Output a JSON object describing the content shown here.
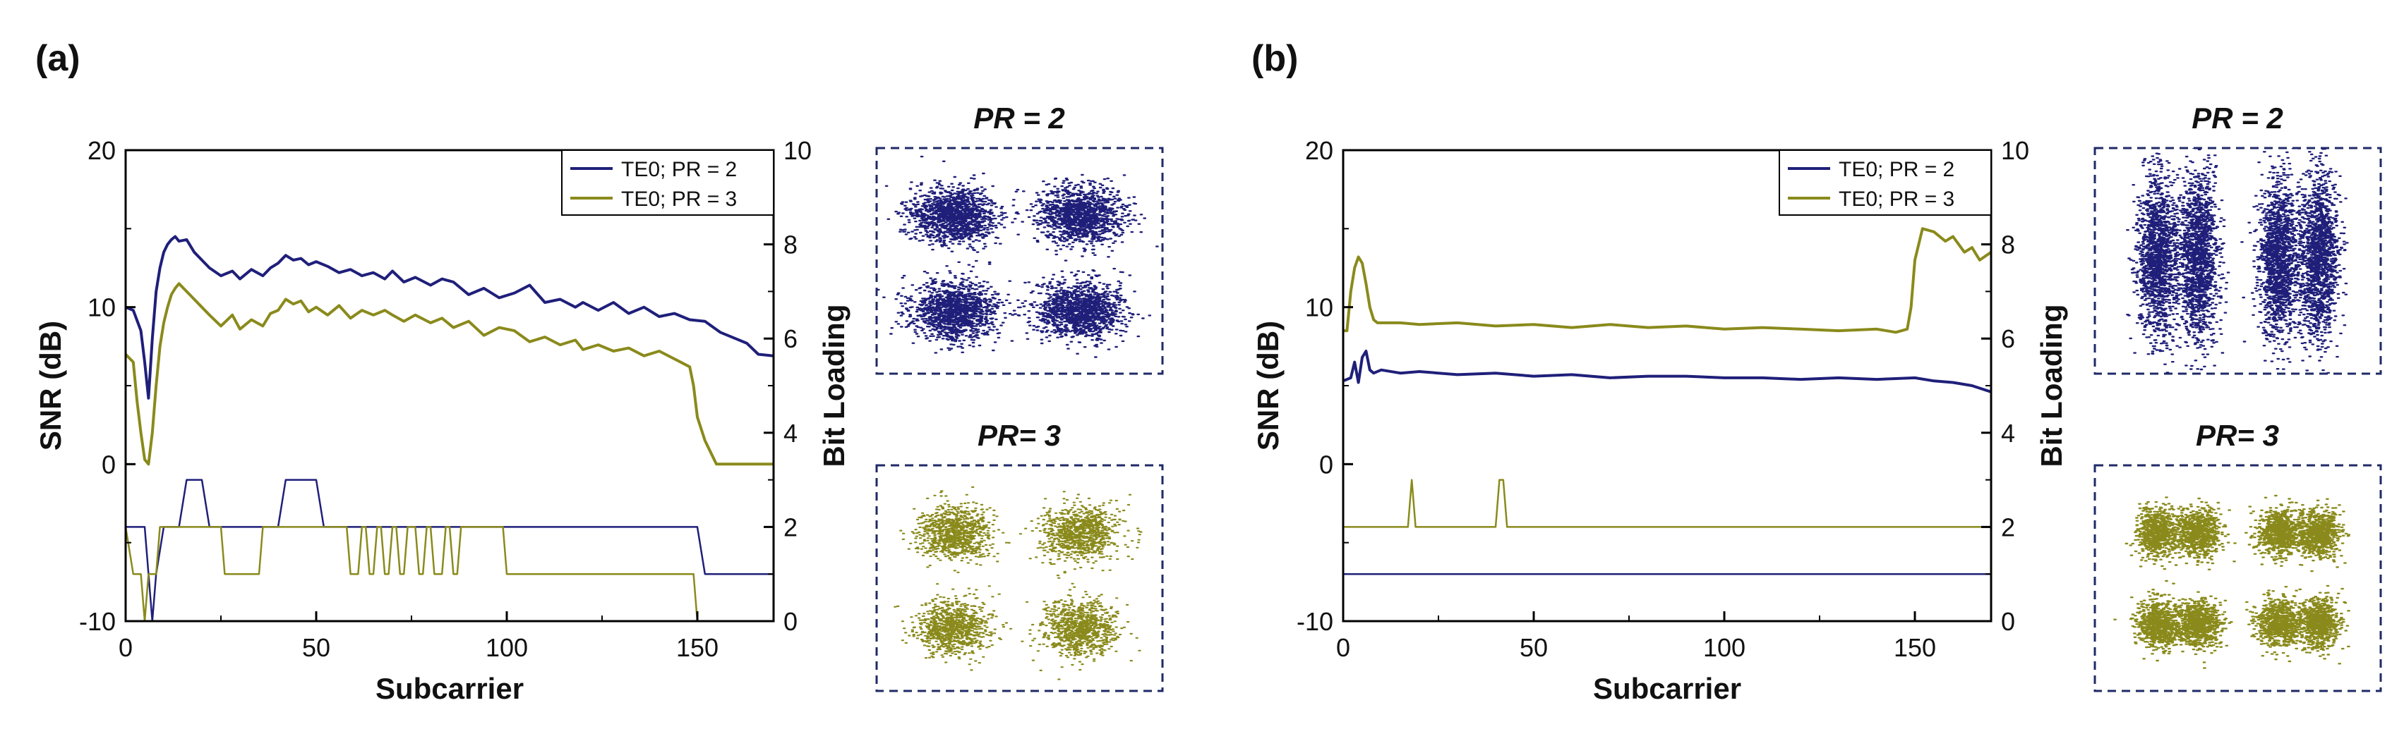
{
  "colors": {
    "pr2": "#1f1f7a",
    "pr3": "#8a8a1c",
    "axis": "#000000",
    "box": "#1f2a66"
  },
  "chart_data": [
    {
      "panel": "(a)",
      "type": "line",
      "xlabel": "Subcarrier",
      "ylabel_left": "SNR (dB)",
      "ylabel_right": "Bit Loading",
      "xlim": [
        0,
        170
      ],
      "ylim_left": [
        -10,
        20
      ],
      "ylim_right": [
        0,
        10
      ],
      "xticks": [
        0,
        50,
        100,
        150
      ],
      "yticks_left": [
        -10,
        0,
        10,
        20
      ],
      "yticks_right": [
        0,
        2,
        4,
        6,
        8,
        10
      ],
      "legend": [
        "TE0; PR = 2",
        "TE0; PR = 3"
      ],
      "legend_position": "top-right",
      "series": [
        {
          "name": "TE0; PR = 2 SNR",
          "axis": "left",
          "color": "pr2",
          "x": [
            0,
            2,
            4,
            5,
            6,
            7,
            8,
            9,
            10,
            11,
            12,
            13,
            14,
            16,
            18,
            20,
            22,
            25,
            28,
            30,
            33,
            36,
            38,
            40,
            42,
            44,
            46,
            48,
            50,
            53,
            56,
            59,
            62,
            65,
            68,
            70,
            73,
            76,
            80,
            83,
            86,
            90,
            94,
            98,
            102,
            106,
            110,
            114,
            118,
            120,
            124,
            128,
            132,
            136,
            140,
            144,
            148,
            152,
            156,
            160,
            163,
            166,
            170
          ],
          "y": [
            10,
            9.8,
            8.5,
            6.5,
            4.2,
            8,
            11,
            12.5,
            13.5,
            14,
            14.3,
            14.5,
            14.2,
            14.3,
            13.5,
            13,
            12.5,
            12,
            12.3,
            11.8,
            12.4,
            12,
            12.5,
            12.8,
            13.3,
            13,
            13.1,
            12.7,
            12.9,
            12.6,
            12.2,
            12.4,
            12,
            12.2,
            11.8,
            12.3,
            11.6,
            11.9,
            11.4,
            11.8,
            11.6,
            10.8,
            11.2,
            10.6,
            10.9,
            11.4,
            10.3,
            10.5,
            10,
            10.3,
            9.8,
            10.3,
            9.6,
            10,
            9.4,
            9.6,
            9.2,
            9.1,
            8.4,
            8,
            7.7,
            7,
            6.9
          ]
        },
        {
          "name": "TE0; PR = 3 SNR",
          "axis": "left",
          "color": "pr3",
          "x": [
            0,
            2,
            3,
            4,
            5,
            6,
            7,
            8,
            9,
            10,
            11,
            12,
            13,
            14,
            16,
            18,
            20,
            22,
            25,
            28,
            30,
            33,
            36,
            38,
            40,
            42,
            44,
            46,
            48,
            50,
            53,
            56,
            59,
            62,
            65,
            68,
            70,
            73,
            76,
            80,
            83,
            86,
            90,
            94,
            98,
            102,
            106,
            110,
            114,
            118,
            120,
            124,
            128,
            132,
            136,
            140,
            144,
            148,
            149,
            150,
            152,
            155,
            160,
            165,
            170
          ],
          "y": [
            7,
            6.5,
            4,
            2,
            0.3,
            0,
            2,
            5,
            7.5,
            9,
            10,
            10.8,
            11.2,
            11.5,
            11,
            10.5,
            10,
            9.5,
            8.8,
            9.5,
            8.6,
            9.2,
            8.8,
            9.6,
            9.8,
            10.5,
            10.2,
            10.4,
            9.7,
            10,
            9.5,
            10.1,
            9.3,
            9.8,
            9.5,
            9.8,
            9.5,
            9.1,
            9.5,
            9,
            9.3,
            8.7,
            9.1,
            8.2,
            8.7,
            8.5,
            7.8,
            8.1,
            7.6,
            7.9,
            7.3,
            7.6,
            7.2,
            7.4,
            6.9,
            7.2,
            6.7,
            6.2,
            5,
            3,
            1.5,
            0,
            0,
            0,
            0
          ]
        },
        {
          "name": "TE0; PR = 2 bit loading",
          "axis": "right",
          "color": "pr2",
          "x": [
            0,
            5,
            6,
            7,
            8,
            10,
            14,
            16,
            18,
            20,
            22,
            40,
            42,
            46,
            50,
            52,
            150,
            152,
            170
          ],
          "y": [
            2,
            2,
            1,
            0,
            1,
            2,
            2,
            3,
            3,
            3,
            2,
            2,
            3,
            3,
            3,
            2,
            2,
            1,
            1
          ]
        },
        {
          "name": "TE0; PR = 3 bit loading",
          "axis": "right",
          "color": "pr3",
          "x": [
            0,
            2,
            4,
            5,
            6,
            7,
            8,
            9,
            25,
            26,
            27,
            28,
            35,
            36,
            37,
            38,
            58,
            59,
            61,
            62,
            63,
            64,
            65,
            66,
            67,
            68,
            69,
            70,
            71,
            72,
            73,
            74,
            76,
            77,
            78,
            79,
            80,
            81,
            83,
            84,
            85,
            86,
            87,
            88,
            99,
            100,
            101,
            102,
            149,
            150,
            151,
            152,
            170
          ],
          "y": [
            2,
            1,
            1,
            0,
            1,
            1,
            1,
            2,
            2,
            1,
            1,
            1,
            1,
            2,
            2,
            2,
            2,
            1,
            1,
            2,
            2,
            1,
            1,
            2,
            2,
            1,
            1,
            2,
            2,
            1,
            1,
            2,
            2,
            1,
            1,
            2,
            2,
            1,
            1,
            2,
            2,
            1,
            1,
            2,
            2,
            1,
            1,
            1,
            1,
            0,
            0,
            0,
            0
          ]
        }
      ]
    },
    {
      "panel": "(b)",
      "type": "line",
      "xlabel": "Subcarrier",
      "ylabel_left": "SNR (dB)",
      "ylabel_right": "Bit Loading",
      "xlim": [
        0,
        170
      ],
      "ylim_left": [
        -10,
        20
      ],
      "ylim_right": [
        0,
        10
      ],
      "xticks": [
        0,
        50,
        100,
        150
      ],
      "yticks_left": [
        -10,
        0,
        10,
        20
      ],
      "yticks_right": [
        0,
        2,
        4,
        6,
        8,
        10
      ],
      "legend": [
        "TE0; PR = 2",
        "TE0; PR = 3"
      ],
      "legend_position": "top-right",
      "series": [
        {
          "name": "TE0; PR = 2 SNR",
          "axis": "left",
          "color": "pr2",
          "x": [
            0,
            2,
            3,
            4,
            5,
            6,
            7,
            8,
            10,
            15,
            20,
            30,
            40,
            50,
            60,
            70,
            80,
            90,
            100,
            110,
            120,
            130,
            140,
            150,
            155,
            160,
            165,
            170
          ],
          "y": [
            5.3,
            5.5,
            6.5,
            5.2,
            6.8,
            7.2,
            6,
            5.8,
            6,
            5.8,
            5.9,
            5.7,
            5.8,
            5.6,
            5.7,
            5.5,
            5.6,
            5.6,
            5.5,
            5.5,
            5.4,
            5.5,
            5.4,
            5.5,
            5.3,
            5.2,
            5,
            4.6
          ]
        },
        {
          "name": "TE0; PR = 3 SNR",
          "axis": "left",
          "color": "pr3",
          "x": [
            0,
            1,
            2,
            3,
            4,
            5,
            6,
            7,
            8,
            9,
            10,
            15,
            20,
            30,
            40,
            50,
            60,
            70,
            80,
            90,
            100,
            110,
            120,
            130,
            140,
            145,
            148,
            149,
            150,
            152,
            155,
            158,
            160,
            163,
            165,
            167,
            170
          ],
          "y": [
            8.5,
            8.5,
            11,
            12.5,
            13.2,
            12.8,
            11.5,
            10,
            9.2,
            9.0,
            9.0,
            9.0,
            8.9,
            9.0,
            8.8,
            8.9,
            8.7,
            8.9,
            8.7,
            8.8,
            8.6,
            8.7,
            8.6,
            8.5,
            8.6,
            8.4,
            8.6,
            10,
            13,
            15,
            14.8,
            14.2,
            14.5,
            13.5,
            13.8,
            13,
            13.5
          ]
        },
        {
          "name": "TE0; PR = 2 bit loading",
          "axis": "right",
          "color": "pr2",
          "x": [
            0,
            170
          ],
          "y": [
            1,
            1
          ]
        },
        {
          "name": "TE0; PR = 3 bit loading",
          "axis": "right",
          "color": "pr3",
          "x": [
            0,
            17,
            18,
            19,
            40,
            41,
            42,
            43,
            170
          ],
          "y": [
            2,
            2,
            3,
            2,
            2,
            3,
            3,
            2,
            2
          ]
        }
      ]
    }
  ],
  "panels": {
    "a": {
      "label": "(a)",
      "const_top_title": "PR = 2",
      "const_bottom_title": "PR= 3"
    },
    "b": {
      "label": "(b)",
      "const_top_title": "PR = 2",
      "const_bottom_title": "PR= 3"
    }
  }
}
